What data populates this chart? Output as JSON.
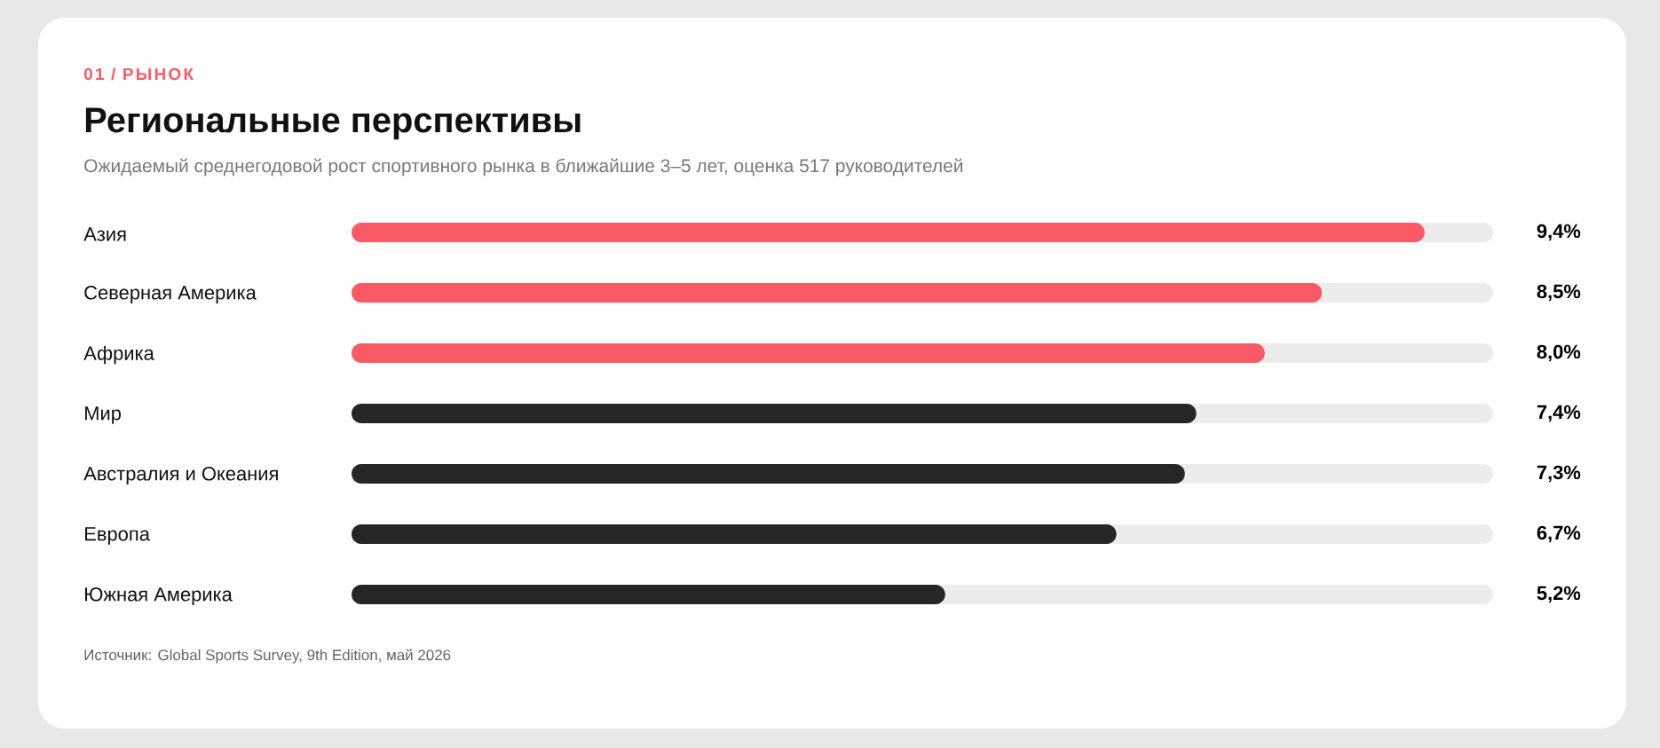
{
  "chart_data": {
    "type": "bar",
    "orientation": "horizontal",
    "title": "Региональные перспективы",
    "subtitle": "Ожидаемый среднегодовой рост спортивного рынка в ближайшие 3–5 лет, оценка 517 руководителей",
    "categories": [
      "Азия",
      "Северная Америка",
      "Африка",
      "Мир",
      "Австралия и Океания",
      "Европа",
      "Южная Америка"
    ],
    "values": [
      9.4,
      8.5,
      8.0,
      7.4,
      7.3,
      6.7,
      5.2
    ],
    "colors": [
      "#f95a65",
      "#f95a65",
      "#f95a65",
      "#262626",
      "#262626",
      "#262626",
      "#262626"
    ],
    "value_labels": [
      "9,4%",
      "8,5%",
      "8,0%",
      "7,4%",
      "7,3%",
      "6,7%",
      "5,2%"
    ],
    "xlim": [
      0,
      10
    ],
    "annotations": [
      "01 / РЫНОК",
      "Источник: Global Sports Survey, 9th Edition, май 2026"
    ]
  }
}
